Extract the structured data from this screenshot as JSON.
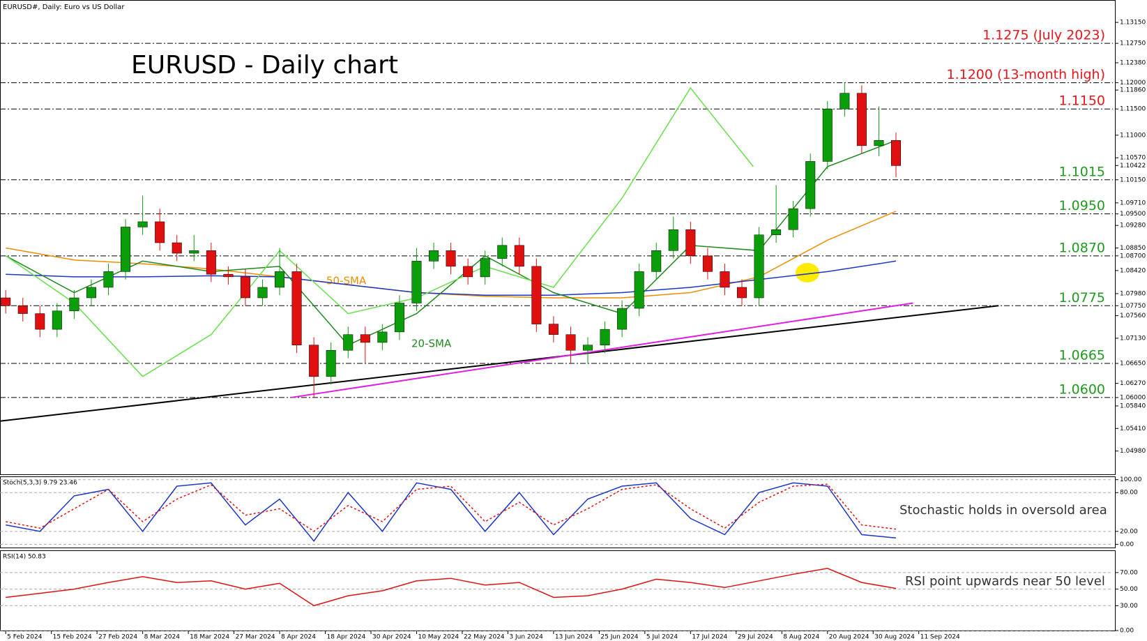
{
  "chart_data": [
    {
      "type": "candlestick",
      "title": "EURUSD - Daily chart",
      "subtitle": "EURUSD#, Daily:  Euro vs US Dollar",
      "annotations": [
        "50-SMA",
        "20-SMA"
      ],
      "up_color": "#0a9e0a",
      "down_color": "#e01010",
      "xlim": [
        -1,
        194
      ],
      "ylim": [
        1.0455,
        1.1355
      ],
      "xticks": [
        {
          "value": 0,
          "label": "5 Feb 2024"
        },
        {
          "value": 8,
          "label": "15 Feb 2024"
        },
        {
          "value": 16,
          "label": "27 Feb 2024"
        },
        {
          "value": 24,
          "label": "8 Mar 2024"
        },
        {
          "value": 32,
          "label": "18 Mar 2024"
        },
        {
          "value": 40,
          "label": "27 Mar 2024"
        },
        {
          "value": 48,
          "label": "8 Apr 2024"
        },
        {
          "value": 56,
          "label": "18 Apr 2024"
        },
        {
          "value": 64,
          "label": "30 Apr 2024"
        },
        {
          "value": 72,
          "label": "10 May 2024"
        },
        {
          "value": 80,
          "label": "22 May 2024"
        },
        {
          "value": 88,
          "label": "3 Jun 2024"
        },
        {
          "value": 96,
          "label": "13 Jun 2024"
        },
        {
          "value": 104,
          "label": "25 Jun 2024"
        },
        {
          "value": 112,
          "label": "5 Jul 2024"
        },
        {
          "value": 120,
          "label": "17 Jul 2024"
        },
        {
          "value": 128,
          "label": "29 Jul 2024"
        },
        {
          "value": 136,
          "label": "8 Aug 2024"
        },
        {
          "value": 144,
          "label": "20 Aug 2024"
        },
        {
          "value": 152,
          "label": "30 Aug 2024"
        },
        {
          "value": 160,
          "label": "11 Sep 2024"
        }
      ],
      "yticks": [
        {
          "value": 1.1315,
          "label": "1.13150"
        },
        {
          "value": 1.1275,
          "label": "1.12750"
        },
        {
          "value": 1.1238,
          "label": "1.12380"
        },
        {
          "value": 1.12,
          "label": "1.12000"
        },
        {
          "value": 1.1186,
          "label": "1.11860"
        },
        {
          "value": 1.115,
          "label": "1.11500"
        },
        {
          "value": 1.11,
          "label": "1.11000"
        },
        {
          "value": 1.1057,
          "label": "1.10570"
        },
        {
          "value": 1.10422,
          "label": "1.10422"
        },
        {
          "value": 1.1015,
          "label": "1.10150"
        },
        {
          "value": 1.0971,
          "label": "1.09710"
        },
        {
          "value": 1.095,
          "label": "1.09500"
        },
        {
          "value": 1.0928,
          "label": "1.09280"
        },
        {
          "value": 1.0885,
          "label": "1.08850"
        },
        {
          "value": 1.087,
          "label": "1.08700"
        },
        {
          "value": 1.0842,
          "label": "1.08420"
        },
        {
          "value": 1.0798,
          "label": "1.07980"
        },
        {
          "value": 1.0775,
          "label": "1.07750"
        },
        {
          "value": 1.0756,
          "label": "1.07560"
        },
        {
          "value": 1.0713,
          "label": "1.07130"
        },
        {
          "value": 1.0665,
          "label": "1.06650"
        },
        {
          "value": 1.0627,
          "label": "1.06270"
        },
        {
          "value": 1.06,
          "label": "1.06000"
        },
        {
          "value": 1.0584,
          "label": "1.05840"
        },
        {
          "value": 1.0541,
          "label": "1.05410"
        },
        {
          "value": 1.0498,
          "label": "1.04980"
        }
      ],
      "levels": [
        {
          "value": 1.1275,
          "label": "1.1275 (July 2023)",
          "color": "#e8151b"
        },
        {
          "value": 1.12,
          "label": "1.1200 (13-month high)",
          "color": "#e8151b"
        },
        {
          "value": 1.115,
          "label": "1.1150",
          "color": "#e8151b"
        },
        {
          "value": 1.1015,
          "label": "1.1015",
          "color": "#1f9a1f"
        },
        {
          "value": 1.095,
          "label": "1.0950",
          "color": "#1f9a1f"
        },
        {
          "value": 1.087,
          "label": "1.0870",
          "color": "#1f9a1f"
        },
        {
          "value": 1.0775,
          "label": "1.0775",
          "color": "#1f9a1f"
        },
        {
          "value": 1.0665,
          "label": "1.0665",
          "color": "#1f9a1f"
        },
        {
          "value": 1.06,
          "label": "1.0600",
          "color": "#1f9a1f"
        }
      ],
      "x": [
        0,
        3,
        6,
        9,
        12,
        15,
        18,
        21,
        24,
        27,
        30,
        33,
        36,
        39,
        42,
        45,
        48,
        51,
        54,
        57,
        60,
        63,
        66,
        69,
        72,
        75,
        78,
        81,
        84,
        87,
        90,
        93,
        96,
        99,
        102,
        105,
        108,
        111,
        114,
        117,
        120,
        123,
        126,
        129,
        132,
        135,
        138,
        141,
        144,
        147,
        150,
        153,
        156
      ],
      "open": [
        1.079,
        1.0775,
        1.076,
        1.073,
        1.0765,
        1.079,
        1.081,
        1.084,
        1.0925,
        1.0935,
        1.0895,
        1.0875,
        1.088,
        1.0835,
        1.083,
        1.079,
        1.081,
        1.084,
        1.07,
        1.064,
        1.069,
        1.072,
        1.0705,
        1.0725,
        1.078,
        1.086,
        1.088,
        1.085,
        1.083,
        1.0865,
        1.089,
        1.085,
        1.074,
        1.072,
        1.069,
        1.07,
        1.073,
        1.077,
        1.084,
        1.088,
        1.092,
        1.087,
        1.084,
        1.081,
        1.079,
        1.091,
        1.092,
        1.096,
        1.105,
        1.115,
        1.118,
        1.108,
        1.109
      ],
      "high": [
        1.0805,
        1.079,
        1.0775,
        1.078,
        1.0805,
        1.0825,
        1.0855,
        1.094,
        1.0985,
        1.096,
        1.091,
        1.091,
        1.0895,
        1.085,
        1.0845,
        1.0825,
        1.0885,
        1.0855,
        1.0715,
        1.0705,
        1.0735,
        1.0735,
        1.074,
        1.0795,
        1.0885,
        1.0895,
        1.0895,
        1.0865,
        1.088,
        1.0905,
        1.0905,
        1.0865,
        1.0755,
        1.0735,
        1.0715,
        1.0745,
        1.0785,
        1.0855,
        1.0895,
        1.0945,
        1.0935,
        1.0885,
        1.0855,
        1.0825,
        1.0925,
        1.1005,
        1.0975,
        1.1065,
        1.1165,
        1.12,
        1.1195,
        1.1155,
        1.1105
      ],
      "low": [
        1.076,
        1.0745,
        1.0715,
        1.0715,
        1.075,
        1.0775,
        1.0795,
        1.0825,
        1.091,
        1.088,
        1.086,
        1.086,
        1.082,
        1.0815,
        1.0775,
        1.0775,
        1.0795,
        1.0685,
        1.06,
        1.0625,
        1.0675,
        1.0665,
        1.069,
        1.071,
        1.0765,
        1.0845,
        1.0835,
        1.0815,
        1.0815,
        1.085,
        1.0835,
        1.0725,
        1.0705,
        1.0665,
        1.0665,
        1.0685,
        1.0715,
        1.0755,
        1.0825,
        1.0865,
        1.0855,
        1.0825,
        1.0795,
        1.0775,
        1.0775,
        1.0895,
        1.0905,
        1.0945,
        1.1035,
        1.1135,
        1.1065,
        1.106,
        1.102
      ],
      "close": [
        1.0775,
        1.076,
        1.073,
        1.0765,
        1.079,
        1.081,
        1.084,
        1.0925,
        1.0935,
        1.0895,
        1.0875,
        1.088,
        1.0835,
        1.083,
        1.079,
        1.081,
        1.084,
        1.07,
        1.064,
        1.069,
        1.072,
        1.0705,
        1.0725,
        1.078,
        1.086,
        1.088,
        1.085,
        1.083,
        1.0865,
        1.089,
        1.085,
        1.074,
        1.072,
        1.069,
        1.07,
        1.073,
        1.077,
        1.084,
        1.088,
        1.092,
        1.087,
        1.084,
        1.081,
        1.079,
        1.091,
        1.092,
        1.096,
        1.105,
        1.115,
        1.118,
        1.108,
        1.109,
        1.1042
      ],
      "series": [
        {
          "color": "#f08c00",
          "x": [
            0,
            12,
            24,
            36,
            48,
            60,
            72,
            84,
            96,
            108,
            120,
            132,
            144,
            156
          ],
          "values": [
            1.0885,
            1.0862,
            1.0855,
            1.0845,
            1.083,
            1.0815,
            1.08,
            1.0793,
            1.079,
            1.079,
            1.08,
            1.083,
            1.09,
            1.0955
          ]
        },
        {
          "color": "#1a35c8",
          "x": [
            0,
            12,
            24,
            36,
            48,
            60,
            72,
            84,
            96,
            108,
            120,
            132,
            144,
            156
          ],
          "values": [
            1.0835,
            1.083,
            1.083,
            1.0832,
            1.083,
            1.0815,
            1.08,
            1.0795,
            1.0795,
            1.08,
            1.081,
            1.0825,
            1.084,
            1.086
          ]
        },
        {
          "color": "#1e8a1e",
          "x": [
            0,
            12,
            24,
            36,
            48,
            60,
            72,
            84,
            96,
            108,
            120,
            132,
            144,
            156
          ],
          "values": [
            1.087,
            1.08,
            1.086,
            1.084,
            1.085,
            1.07,
            1.076,
            1.087,
            1.08,
            1.076,
            1.089,
            1.088,
            1.104,
            1.109
          ]
        },
        {
          "color": "#66e04a",
          "x": [
            0,
            12,
            24,
            36,
            48,
            60,
            72,
            84,
            96,
            108,
            120,
            131
          ],
          "values": [
            1.087,
            1.078,
            1.064,
            1.072,
            1.088,
            1.076,
            1.079,
            1.085,
            1.081,
            1.098,
            1.119,
            1.104
          ]
        }
      ],
      "trendlines": [
        {
          "color": "#000000",
          "x": [
            -1,
            174
          ],
          "values": [
            1.0555,
            1.0775
          ]
        },
        {
          "color": "#e020e0",
          "x": [
            50,
            159
          ],
          "values": [
            1.06,
            1.078
          ]
        }
      ]
    },
    {
      "type": "line",
      "title": "Stoch(5,3,3) 9.79 23.46",
      "annotations": [
        "Stochastic holds in oversold area"
      ],
      "ylim": [
        -5,
        104
      ],
      "yticks": [
        {
          "value": 100,
          "label": "100.00"
        },
        {
          "value": 80,
          "label": "80.00"
        },
        {
          "value": 20,
          "label": "20.00"
        },
        {
          "value": 0,
          "label": "0.00"
        }
      ],
      "series": [
        {
          "color": "#1a35c8",
          "x": [
            0,
            6,
            12,
            18,
            24,
            30,
            36,
            42,
            48,
            54,
            60,
            66,
            72,
            78,
            84,
            90,
            96,
            102,
            108,
            114,
            120,
            126,
            132,
            138,
            144,
            150,
            156
          ],
          "values": [
            30,
            20,
            75,
            85,
            20,
            90,
            95,
            30,
            70,
            5,
            80,
            20,
            95,
            85,
            20,
            80,
            15,
            70,
            90,
            95,
            40,
            15,
            80,
            95,
            90,
            15,
            9.79
          ]
        },
        {
          "color": "#e01010",
          "dash": true,
          "x": [
            0,
            6,
            12,
            18,
            24,
            30,
            36,
            42,
            48,
            54,
            60,
            66,
            72,
            78,
            84,
            90,
            96,
            102,
            108,
            114,
            120,
            126,
            132,
            138,
            144,
            150,
            156
          ],
          "values": [
            35,
            25,
            55,
            85,
            35,
            70,
            92,
            45,
            55,
            20,
            60,
            35,
            85,
            90,
            35,
            65,
            30,
            55,
            85,
            92,
            55,
            25,
            65,
            90,
            93,
            30,
            23.46
          ]
        }
      ]
    },
    {
      "type": "line",
      "title": "RSI(14) 50.83",
      "annotations": [
        "RSI point upwards near 50 level"
      ],
      "ylim": [
        0,
        96
      ],
      "yticks": [
        {
          "value": 70,
          "label": "70.00"
        },
        {
          "value": 50,
          "label": "50.00"
        },
        {
          "value": 30,
          "label": "30.00"
        },
        {
          "value": 0,
          "label": "0.00"
        }
      ],
      "series": [
        {
          "color": "#e01010",
          "x": [
            0,
            6,
            12,
            18,
            24,
            30,
            36,
            42,
            48,
            54,
            60,
            66,
            72,
            78,
            84,
            90,
            96,
            102,
            108,
            114,
            120,
            126,
            132,
            138,
            144,
            150,
            156
          ],
          "values": [
            40,
            45,
            50,
            58,
            65,
            58,
            60,
            50,
            57,
            30,
            42,
            48,
            60,
            63,
            55,
            58,
            40,
            42,
            50,
            62,
            58,
            52,
            60,
            68,
            75,
            58,
            50.83
          ]
        }
      ]
    }
  ]
}
